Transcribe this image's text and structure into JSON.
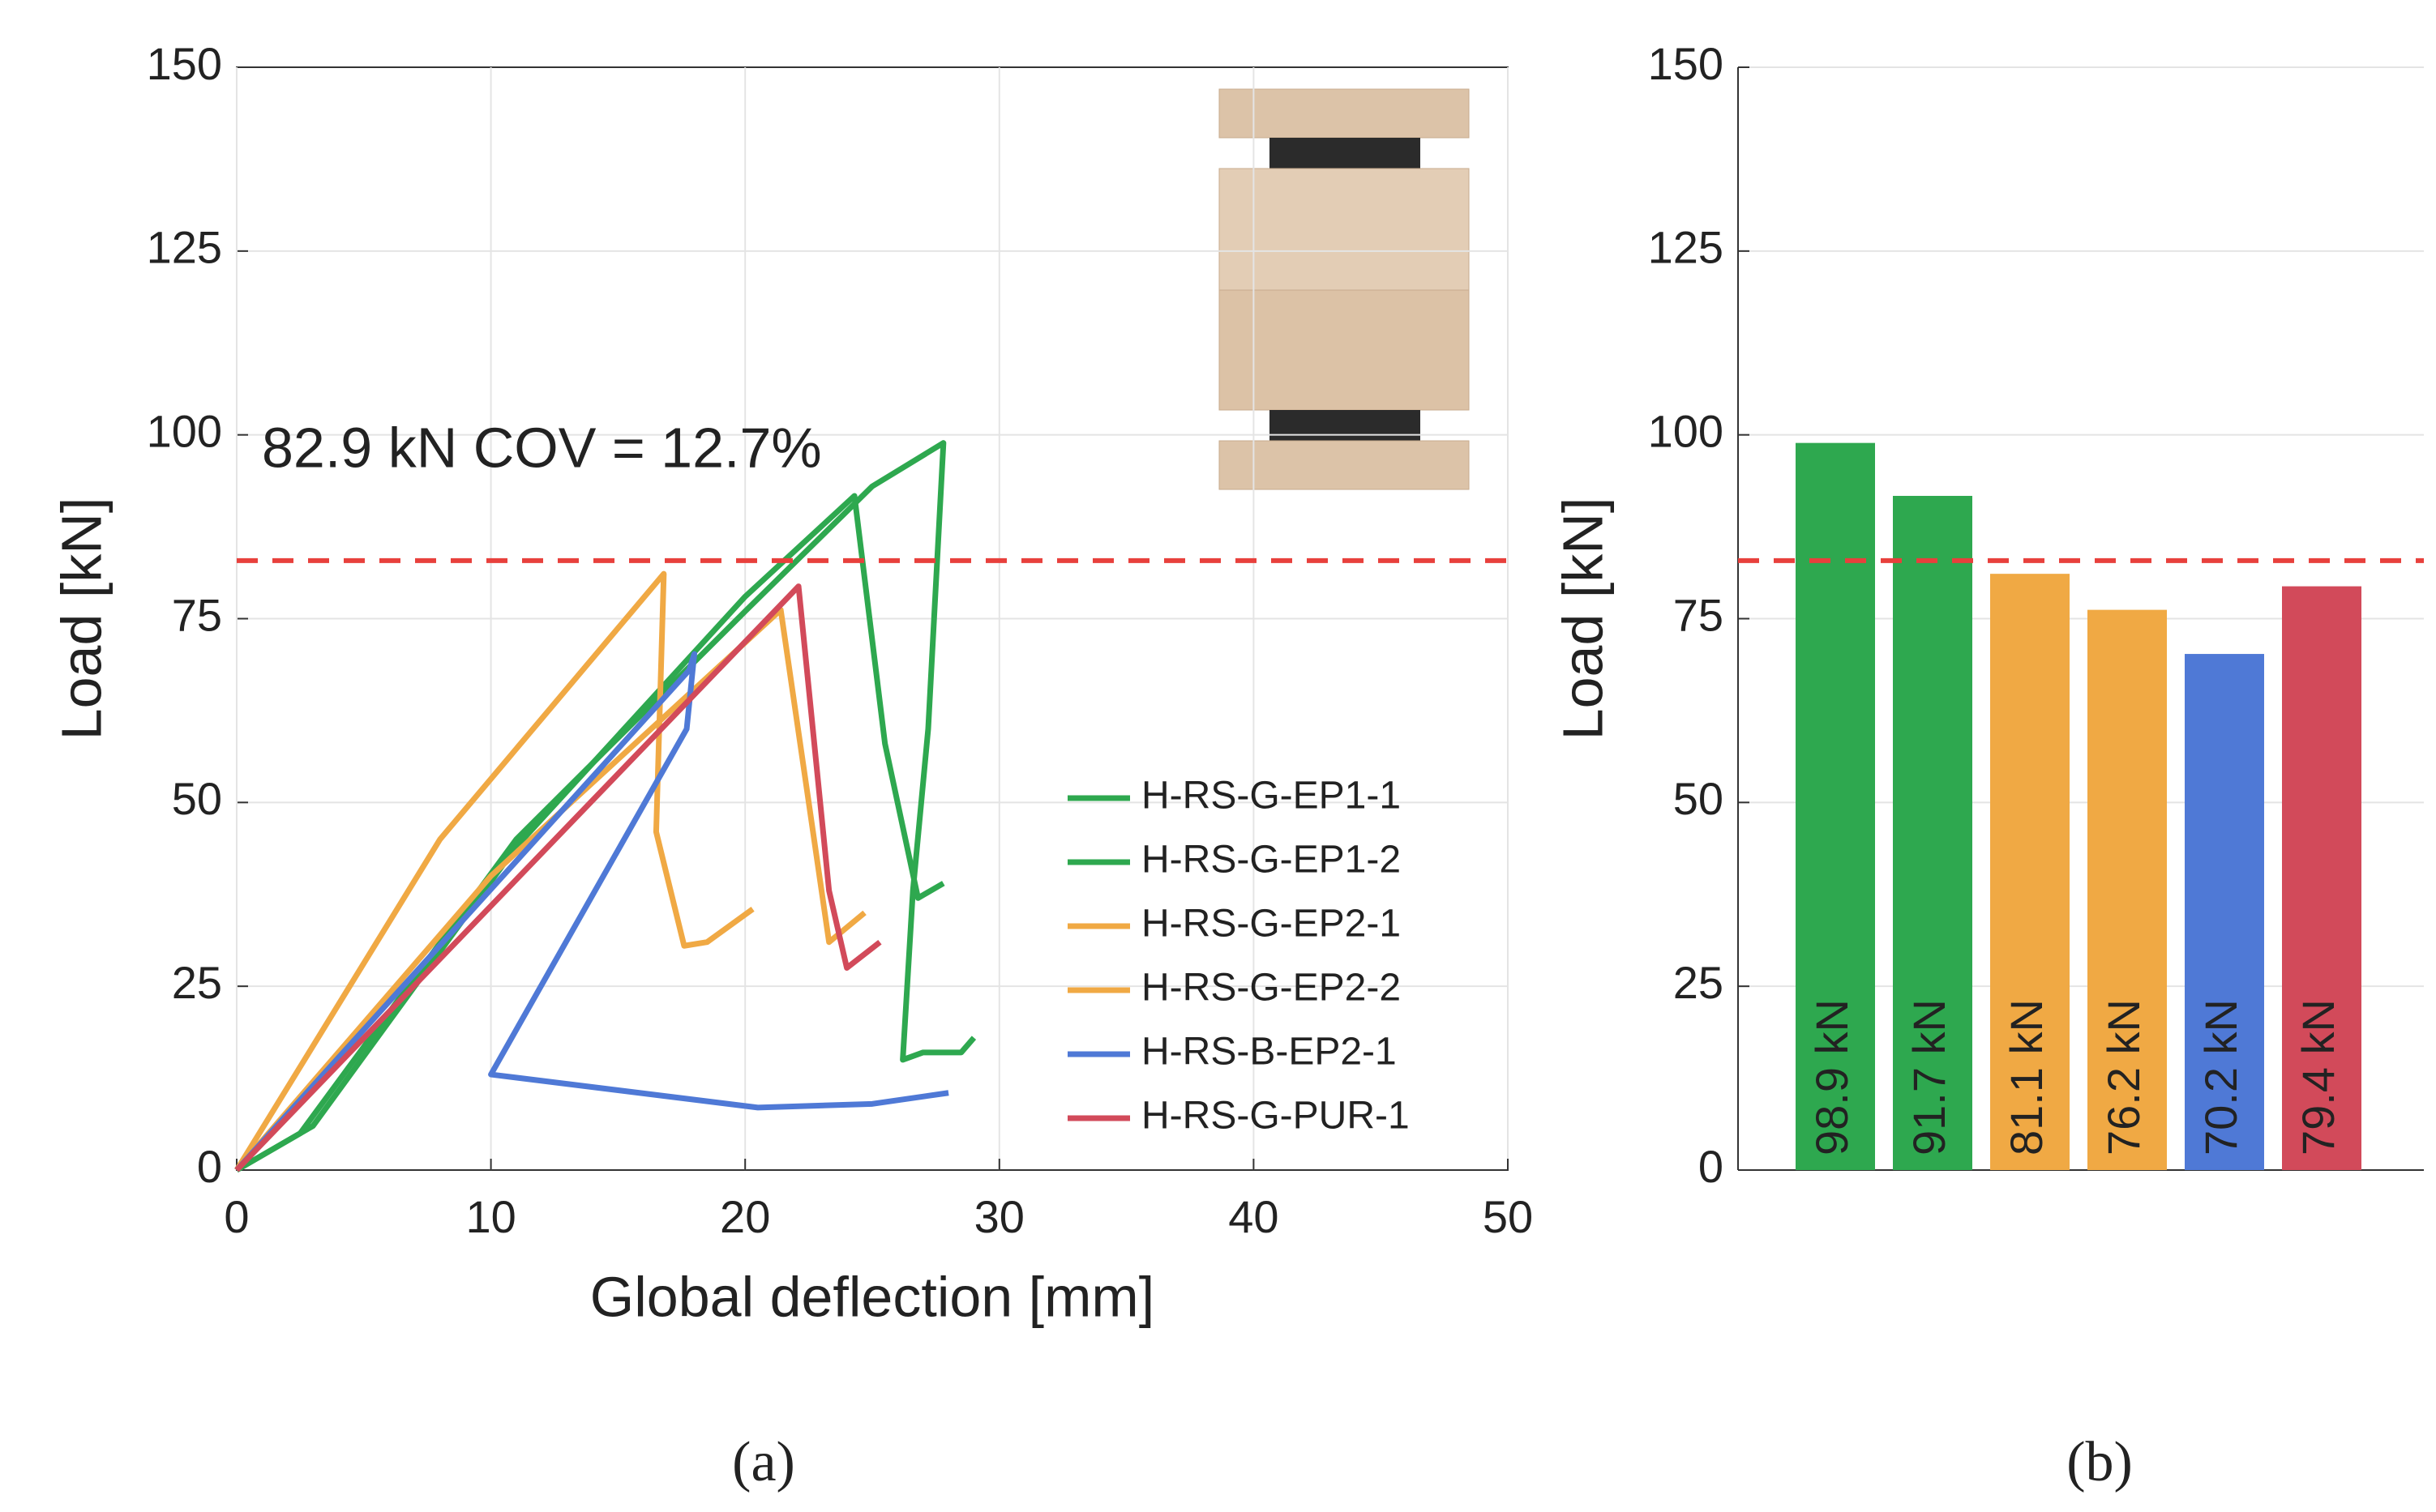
{
  "chart_data": [
    {
      "type": "line",
      "label": "(a)",
      "xlabel": "Global deflection [mm]",
      "ylabel": "Load [kN]",
      "annotation": "82.9 kN COV = 12.7%",
      "reference_line": 82.9,
      "xlim": [
        0,
        50
      ],
      "xticks": [
        0,
        10,
        20,
        30,
        40,
        50
      ],
      "ylim": [
        0,
        150
      ],
      "yticks": [
        0,
        25,
        50,
        75,
        100,
        125,
        150
      ],
      "grid": true,
      "legend": "lower right",
      "series": [
        {
          "name": "H-RS-G-EP1-1",
          "color": "#2ea84f",
          "x": [
            0,
            2.5,
            11,
            20,
            25,
            27.8,
            27.2,
            26.6,
            26.2,
            27,
            28.5,
            29
          ],
          "values": [
            0,
            5,
            45,
            76,
            93,
            98.9,
            60,
            38,
            15,
            16,
            16,
            18
          ]
        },
        {
          "name": "H-RS-G-EP1-2",
          "color": "#2ea84f",
          "x": [
            0,
            3,
            11,
            20,
            24.3,
            25.5,
            26.8,
            27.8
          ],
          "values": [
            0,
            6,
            44,
            78,
            91.7,
            58,
            37,
            39
          ]
        },
        {
          "name": "H-RS-G-EP2-1",
          "color": "#f0a944",
          "x": [
            0,
            8,
            16.8,
            16.5,
            17.6,
            18.5,
            20.3
          ],
          "values": [
            0,
            45,
            81.1,
            46,
            30.5,
            31,
            35.5
          ]
        },
        {
          "name": "H-RS-G-EP2-2",
          "color": "#f0a944",
          "x": [
            0,
            10,
            21.4,
            23.3,
            24.7
          ],
          "values": [
            0,
            40,
            76.2,
            31,
            35
          ]
        },
        {
          "name": "H-RS-B-EP2-1",
          "color": "#4f79d6",
          "x": [
            0,
            17.8,
            18,
            17.7,
            10,
            20.5,
            25,
            28
          ],
          "values": [
            0,
            68,
            70.2,
            60,
            13,
            8.5,
            9,
            10.5
          ]
        },
        {
          "name": "H-RS-G-PUR-1",
          "color": "#d24a5a",
          "x": [
            0,
            22.1,
            23.3,
            24,
            25.3
          ],
          "values": [
            0,
            79.4,
            38,
            27.5,
            31
          ]
        }
      ]
    },
    {
      "type": "bar",
      "label": "(b)",
      "ylabel": "Load [kN]",
      "reference_line": 82.9,
      "ylim": [
        0,
        150
      ],
      "yticks": [
        0,
        25,
        50,
        75,
        100,
        125,
        150
      ],
      "grid": true,
      "values": [
        98.9,
        91.7,
        81.1,
        76.2,
        70.2,
        79.4
      ],
      "value_labels": [
        "98.9 kN",
        "91.7 kN",
        "81.1 kN",
        "76.2 kN",
        "70.2 kN",
        "79.4 kN"
      ],
      "colors": [
        "#2ea84f",
        "#2ea84f",
        "#f0a944",
        "#f0a944",
        "#4f79d6",
        "#d24a5a"
      ]
    }
  ]
}
